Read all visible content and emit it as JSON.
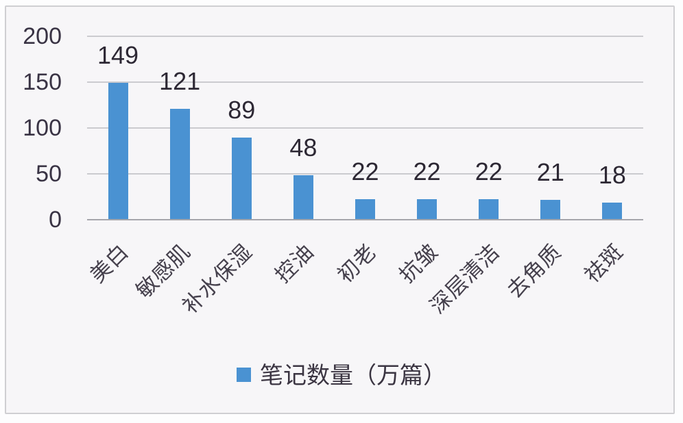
{
  "chart_data": {
    "type": "bar",
    "title": "",
    "xlabel": "",
    "ylabel": "",
    "categories": [
      "美白",
      "敏感肌",
      "补水保湿",
      "控油",
      "初老",
      "抗皱",
      "深层清洁",
      "去角质",
      "祛斑"
    ],
    "values": [
      149,
      121,
      89,
      48,
      22,
      22,
      22,
      21,
      18
    ],
    "series_name": "笔记数量（万篇）",
    "ylim": [
      0,
      200
    ],
    "yticks": [
      0,
      50,
      100,
      150,
      200
    ],
    "grid": true,
    "data_labels_shown": true,
    "legend_position": "bottom",
    "category_label_rotation_deg": -45
  },
  "legend": {
    "label": "笔记数量（万篇）"
  },
  "colors": {
    "bar": "#4A92D2",
    "gridline": "#cbcbcf",
    "axis_line": "#a6a6ab",
    "panel_background": "#f7f6f8",
    "panel_border": "#cfcfd2",
    "tick_text": "#393344",
    "value_text": "#2d2834",
    "category_text": "#46414d"
  }
}
